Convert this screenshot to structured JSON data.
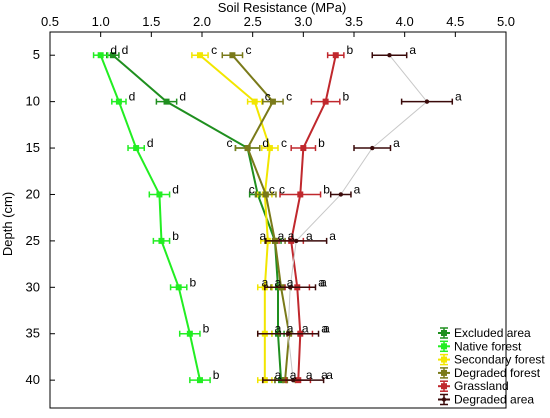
{
  "chart_data": {
    "type": "line",
    "title": "",
    "xlabel": "Soil Resistance (MPa)",
    "ylabel": "Depth (cm)",
    "xlim": [
      0.5,
      5.0
    ],
    "ylim": [
      43,
      2.5
    ],
    "x_ticks": [
      "0.5",
      "1.0",
      "1.5",
      "2.0",
      "2.5",
      "3.0",
      "3.5",
      "4.0",
      "4.5",
      "5.0"
    ],
    "y_ticks": [
      "5",
      "10",
      "15",
      "20",
      "25",
      "30",
      "35",
      "40"
    ],
    "depths": [
      5,
      10,
      15,
      20,
      25,
      30,
      35,
      40
    ],
    "x_axis_position": "top",
    "legend_position": "bottom-right",
    "series": [
      {
        "name": "Excluded area",
        "color": "#1f8f1f",
        "values": [
          1.12,
          1.65,
          2.45,
          2.55,
          2.72,
          2.75,
          2.75,
          2.78
        ],
        "errors": [
          0.06,
          0.1,
          0.12,
          0.08,
          0.06,
          0.06,
          0.06,
          0.06
        ],
        "letters": [
          "d",
          "d",
          "d",
          "c",
          "a",
          "a",
          "a",
          "a"
        ]
      },
      {
        "name": "Native forest",
        "color": "#22ee22",
        "values": [
          1.0,
          1.18,
          1.35,
          1.58,
          1.6,
          1.77,
          1.88,
          1.98
        ],
        "errors": [
          0.07,
          0.07,
          0.08,
          0.1,
          0.08,
          0.08,
          0.1,
          0.1
        ],
        "letters": [
          "d",
          "d",
          "d",
          "d",
          "b",
          "b",
          "b",
          "b"
        ]
      },
      {
        "name": "Secondary forest",
        "color": "#f2e600",
        "values": [
          1.98,
          2.52,
          2.67,
          2.62,
          2.65,
          2.62,
          2.62,
          2.62
        ],
        "errors": [
          0.08,
          0.07,
          0.08,
          0.07,
          0.07,
          0.07,
          0.07,
          0.07
        ],
        "letters": [
          "c",
          "c",
          "c",
          "c",
          "a",
          "a",
          "a",
          "a"
        ]
      },
      {
        "name": "Degraded forest",
        "color": "#7a7a1a",
        "values": [
          2.3,
          2.7,
          2.45,
          2.63,
          2.72,
          2.78,
          2.86,
          2.82
        ],
        "errors": [
          0.1,
          0.1,
          0.12,
          0.1,
          0.1,
          0.1,
          0.1,
          0.1
        ],
        "letters": [
          "c",
          "c",
          "c",
          "c",
          "a",
          "a",
          "a",
          "a"
        ]
      },
      {
        "name": "Grassland",
        "color": "#c0282d",
        "values": [
          3.32,
          3.22,
          3.0,
          2.97,
          2.88,
          2.94,
          2.97,
          2.95
        ],
        "errors": [
          0.08,
          0.14,
          0.12,
          0.2,
          0.12,
          0.12,
          0.12,
          0.12
        ],
        "letters": [
          "b",
          "b",
          "b",
          "b",
          "a",
          "a",
          "a",
          "a"
        ]
      },
      {
        "name": "Degraded area",
        "color": "#3a0a0a",
        "values": [
          3.85,
          4.22,
          3.68,
          3.37,
          2.93,
          2.87,
          2.85,
          2.9
        ],
        "errors": [
          0.17,
          0.25,
          0.18,
          0.1,
          0.3,
          0.25,
          0.3,
          0.3
        ],
        "letters": [
          "a",
          "a",
          "a",
          "a",
          "a",
          "a",
          "a",
          "a"
        ],
        "line_color": "#c8c8c8"
      }
    ]
  }
}
